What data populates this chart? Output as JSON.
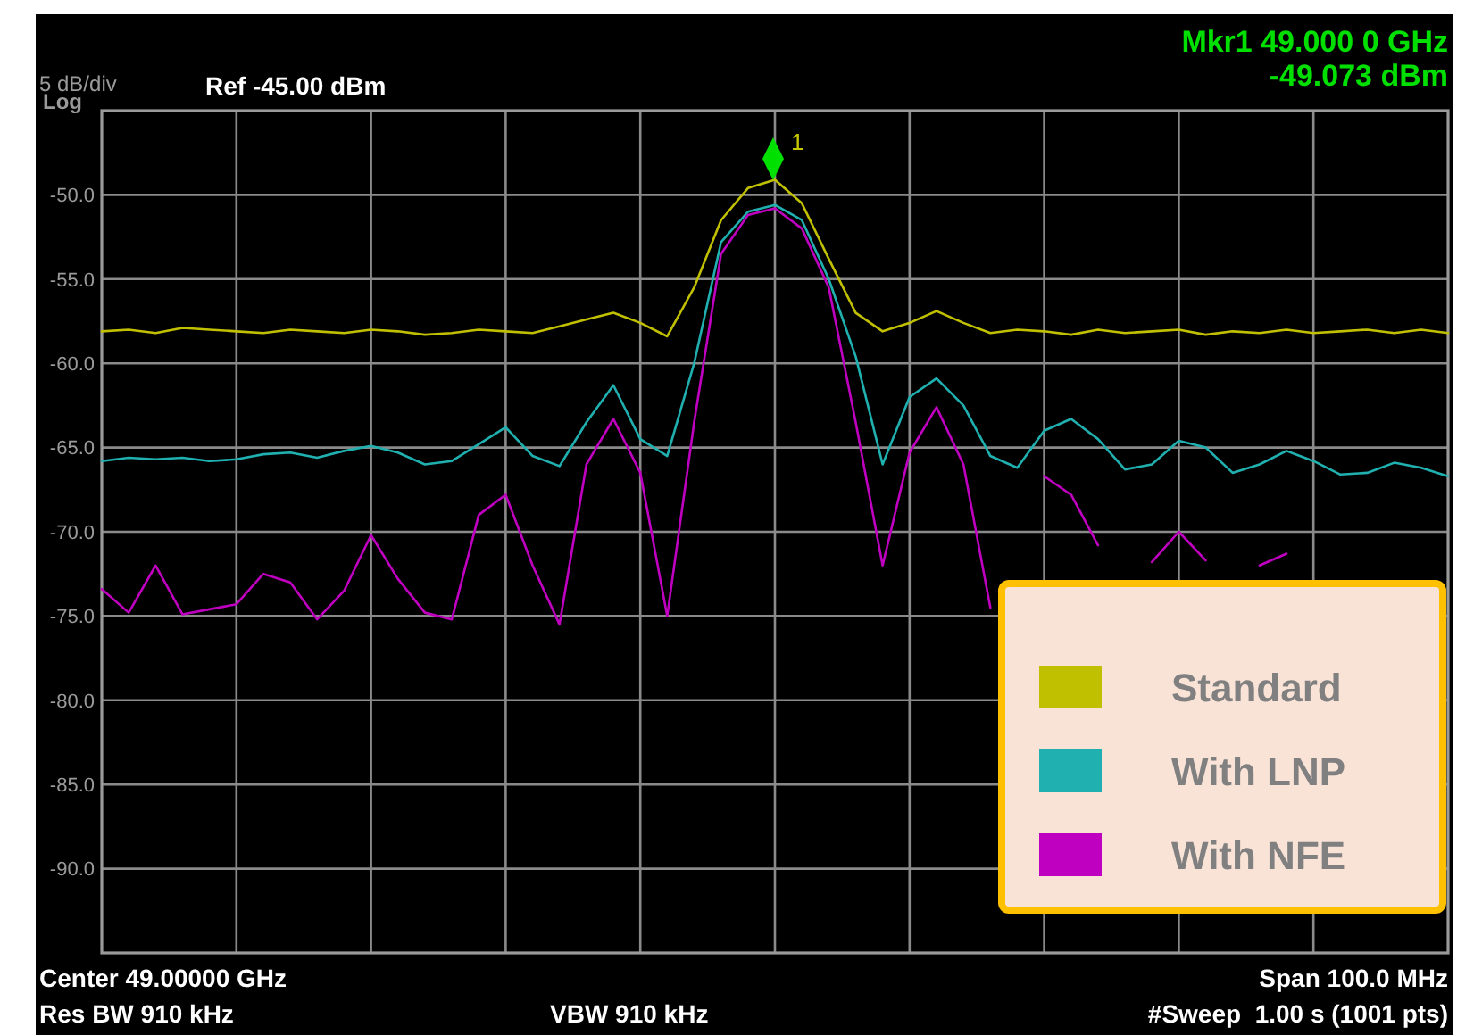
{
  "chart_data": {
    "type": "line",
    "categories": [
      null,
      null,
      null,
      null,
      null,
      null,
      null,
      null,
      null,
      null,
      null,
      null,
      null,
      null,
      null,
      null,
      null,
      null,
      null,
      null,
      null,
      null,
      null,
      null,
      null,
      null,
      null,
      null,
      null,
      null,
      null,
      null,
      null,
      null,
      null,
      null,
      null,
      null,
      null,
      null,
      null,
      null,
      null,
      null,
      null,
      null,
      null,
      null,
      null,
      null,
      null
    ],
    "ylim": [
      -95,
      -45
    ],
    "yticks": [
      {
        "value": -50,
        "label": "-50.0"
      },
      {
        "value": -55,
        "label": "-55.0"
      },
      {
        "value": -60,
        "label": "-60.0"
      },
      {
        "value": -65,
        "label": "-65.0"
      },
      {
        "value": -70,
        "label": "-70.0"
      },
      {
        "value": -75,
        "label": "-75.0"
      },
      {
        "value": -80,
        "label": "-80.0"
      },
      {
        "value": -85,
        "label": "-85.0"
      },
      {
        "value": -90,
        "label": "-90.0"
      }
    ],
    "grid": true,
    "legend": "bottom right",
    "line_style": "solid",
    "annotations": [
      "5 dB/div",
      "Log",
      "Ref -45.00 dBm",
      "Mkr1 49.000 0 GHz",
      "-49.073 dBm",
      "Center 49.00000 GHz",
      "Res BW 910 kHz",
      "VBW 910 kHz",
      "Span 100.0 MHz",
      "#Sweep  1.00 s (1001 pts)",
      "1"
    ],
    "series": [
      {
        "name": "Standard",
        "color": "#c0c000",
        "values": [
          -58.1,
          -58.0,
          -58.2,
          -57.9,
          -58.0,
          -58.1,
          -58.2,
          -58.0,
          -58.1,
          -58.2,
          -58.0,
          -58.1,
          -58.3,
          -58.2,
          -58.0,
          -58.1,
          -58.2,
          -57.8,
          -57.4,
          -57.0,
          -57.6,
          -58.4,
          -55.5,
          -51.5,
          -49.6,
          -49.1,
          -50.5,
          -53.8,
          -57.0,
          -58.1,
          -57.6,
          -56.9,
          -57.6,
          -58.2,
          -58.0,
          -58.1,
          -58.3,
          -58.0,
          -58.2,
          -58.1,
          -58.0,
          -58.3,
          -58.1,
          -58.2,
          -58.0,
          -58.2,
          -58.1,
          -58.0,
          -58.2,
          -58.0,
          -58.2
        ]
      },
      {
        "name": "With LNP",
        "color": "#20b0b0",
        "values": [
          -65.8,
          -65.6,
          -65.7,
          -65.6,
          -65.8,
          -65.7,
          -65.4,
          -65.3,
          -65.6,
          -65.2,
          -64.9,
          -65.3,
          -66.0,
          -65.8,
          -64.8,
          -63.8,
          -65.5,
          -66.1,
          -63.5,
          -61.3,
          -64.5,
          -65.5,
          -60.0,
          -52.8,
          -51.0,
          -50.6,
          -51.5,
          -55.0,
          -59.6,
          -66.0,
          -62.0,
          -60.9,
          -62.5,
          -65.5,
          -66.2,
          -64.0,
          -63.3,
          -64.5,
          -66.3,
          -66.0,
          -64.6,
          -65.0,
          -66.5,
          -66.0,
          -65.2,
          -65.8,
          -66.6,
          -66.5,
          -65.9,
          -66.2,
          -66.7
        ]
      },
      {
        "name": "With NFE",
        "color": "#c000c0",
        "values": [
          -73.4,
          -74.8,
          -72.0,
          -74.9,
          -74.6,
          -74.3,
          -72.5,
          -73.0,
          -75.2,
          -73.5,
          -70.2,
          -72.8,
          -74.8,
          -75.2,
          -69.0,
          -67.8,
          -72.0,
          -75.5,
          -66.0,
          -63.3,
          -66.5,
          -75.0,
          -63.5,
          -53.5,
          -51.2,
          -50.8,
          -52.0,
          -55.5,
          -63.5,
          -72.0,
          -65.3,
          -62.6,
          -66.0,
          -74.5,
          null,
          -66.7,
          -67.8,
          -70.8,
          null,
          -71.8,
          -70.0,
          -71.7,
          null,
          -72.0,
          -71.3,
          null,
          null,
          null,
          null,
          null,
          null
        ]
      }
    ]
  }
}
